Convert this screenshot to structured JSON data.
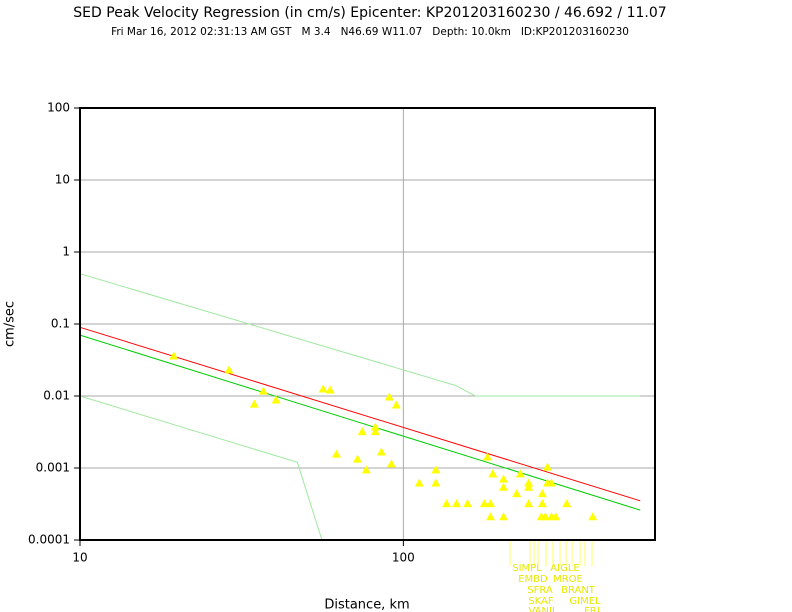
{
  "chart_data": {
    "type": "scatter",
    "title": "SED Peak Velocity Regression (in cm/s) Epicenter: KP201203160230 / 46.692 / 11.07",
    "subtitle": "Fri Mar 16, 2012 02:31:13 AM GST   M 3.4   N46.69 W11.07   Depth: 10.0km   ID:KP201203160230",
    "x_label": "Distance, km",
    "y_label": "cm/sec",
    "xscale": "log",
    "yscale": "log",
    "grid": true,
    "xlim": [
      10,
      600
    ],
    "ylim": [
      0.0001,
      100
    ],
    "xticks": [
      10,
      100
    ],
    "yticks": [
      0.0001,
      0.001,
      0.01,
      0.1,
      1,
      10,
      100
    ],
    "series": [
      {
        "type": "scatter",
        "color": "#ffff00",
        "x": [
          19.5,
          28.9,
          34.6,
          36.9,
          40.4,
          56.5,
          59.4,
          62.1,
          74.6,
          72.1,
          76.8,
          81.9,
          81.9,
          85.5,
          90.5,
          91.8,
          95.1,
          112,
          126,
          126,
          136,
          146,
          158,
          178,
          186,
          182,
          189,
          204,
          204,
          186,
          204,
          224,
          230,
          244,
          244,
          244,
          269,
          269,
          279,
          279,
          287,
          275,
          287,
          296,
          320,
          385,
          267
        ],
        "y": [
          0.036,
          0.023,
          0.0077,
          0.0117,
          0.0088,
          0.0125,
          0.0121,
          0.00156,
          0.0032,
          0.00133,
          0.00094,
          0.0037,
          0.0032,
          0.00167,
          0.0097,
          0.00114,
          0.0075,
          0.00062,
          0.00094,
          0.00062,
          0.00032,
          0.00032,
          0.00032,
          0.00032,
          0.00032,
          0.00142,
          0.00083,
          0.0007,
          0.00054,
          0.00021,
          0.00021,
          0.00044,
          0.00083,
          0.00062,
          0.00054,
          0.00032,
          0.00044,
          0.00032,
          0.00103,
          0.00062,
          0.00062,
          0.00021,
          0.00021,
          0.00021,
          0.00032,
          0.00021,
          0.00021
        ]
      },
      {
        "type": "line",
        "color": "#ff0000",
        "x": [
          10,
          540
        ],
        "y": [
          0.09,
          0.00035
        ]
      },
      {
        "type": "line",
        "color": "#00cc00",
        "x": [
          10,
          540
        ],
        "y": [
          0.07,
          0.00026
        ]
      },
      {
        "type": "line",
        "color": "#a0e8a0",
        "x": [
          10,
          145,
          167,
          540
        ],
        "y": [
          0.5,
          0.014,
          0.01,
          0.01
        ]
      },
      {
        "type": "line",
        "color": "#a0e8a0",
        "x": [
          10,
          47,
          56
        ],
        "y": [
          0.01,
          0.0012,
          0.0001
        ]
      }
    ],
    "station_labels": [
      "SIMPL",
      "AIGLE",
      "EMBD",
      "MROE",
      "SFRA",
      "BRANT",
      "SKAF",
      "GIMEL",
      "VANIL",
      "FRI"
    ]
  }
}
